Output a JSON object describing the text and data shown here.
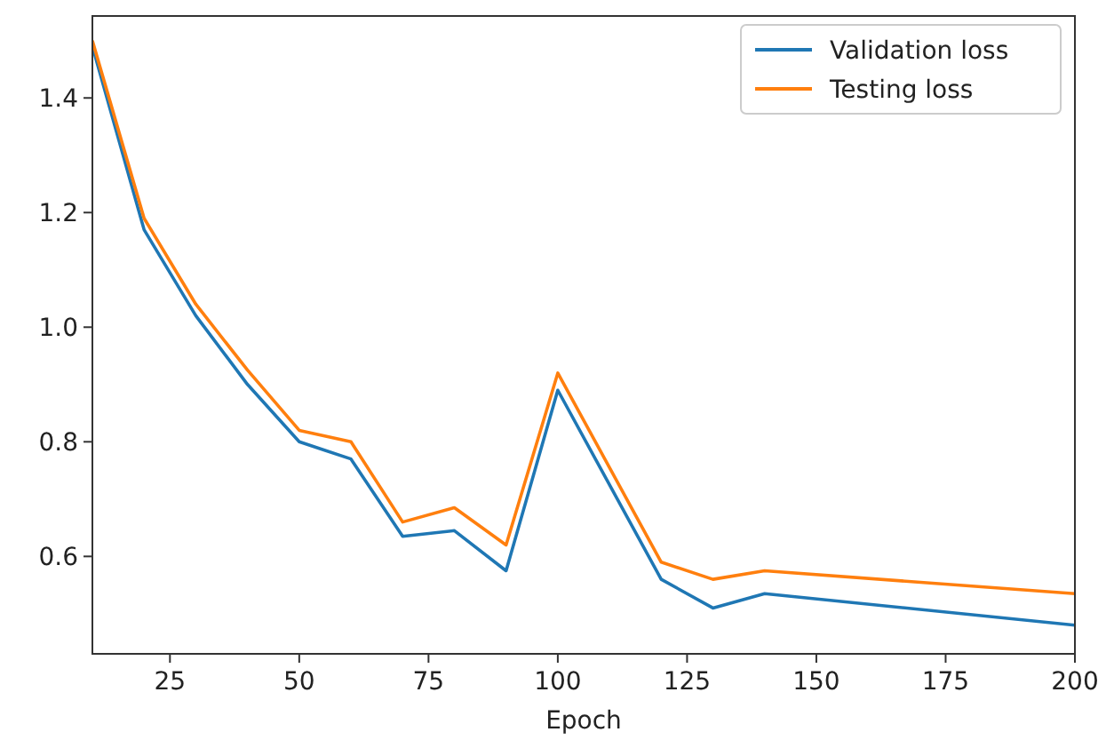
{
  "chart_data": {
    "type": "line",
    "xlabel": "Epoch",
    "x": [
      10,
      20,
      30,
      40,
      50,
      60,
      70,
      80,
      90,
      100,
      120,
      130,
      140,
      200
    ],
    "series": [
      {
        "name": "Validation loss",
        "color": "#1f77b4",
        "values": [
          1.49,
          1.17,
          1.02,
          0.9,
          0.8,
          0.77,
          0.635,
          0.645,
          0.575,
          0.89,
          0.56,
          0.51,
          0.535,
          0.48
        ]
      },
      {
        "name": "Testing loss",
        "color": "#ff7f0e",
        "values": [
          1.5,
          1.19,
          1.04,
          0.925,
          0.82,
          0.8,
          0.66,
          0.685,
          0.62,
          0.92,
          0.59,
          0.56,
          0.575,
          0.535
        ]
      }
    ],
    "xlim": [
      10,
      200
    ],
    "xticks": [
      25,
      50,
      75,
      100,
      125,
      150,
      175,
      200
    ],
    "ylim": [
      0.43,
      1.543
    ],
    "yticks": [
      0.6,
      0.8,
      {
        "value": 1,
        "label": "1.0"
      },
      1.2,
      1.4
    ],
    "grid": false,
    "legend": "top right",
    "marker": "none",
    "line_style": "solid"
  }
}
